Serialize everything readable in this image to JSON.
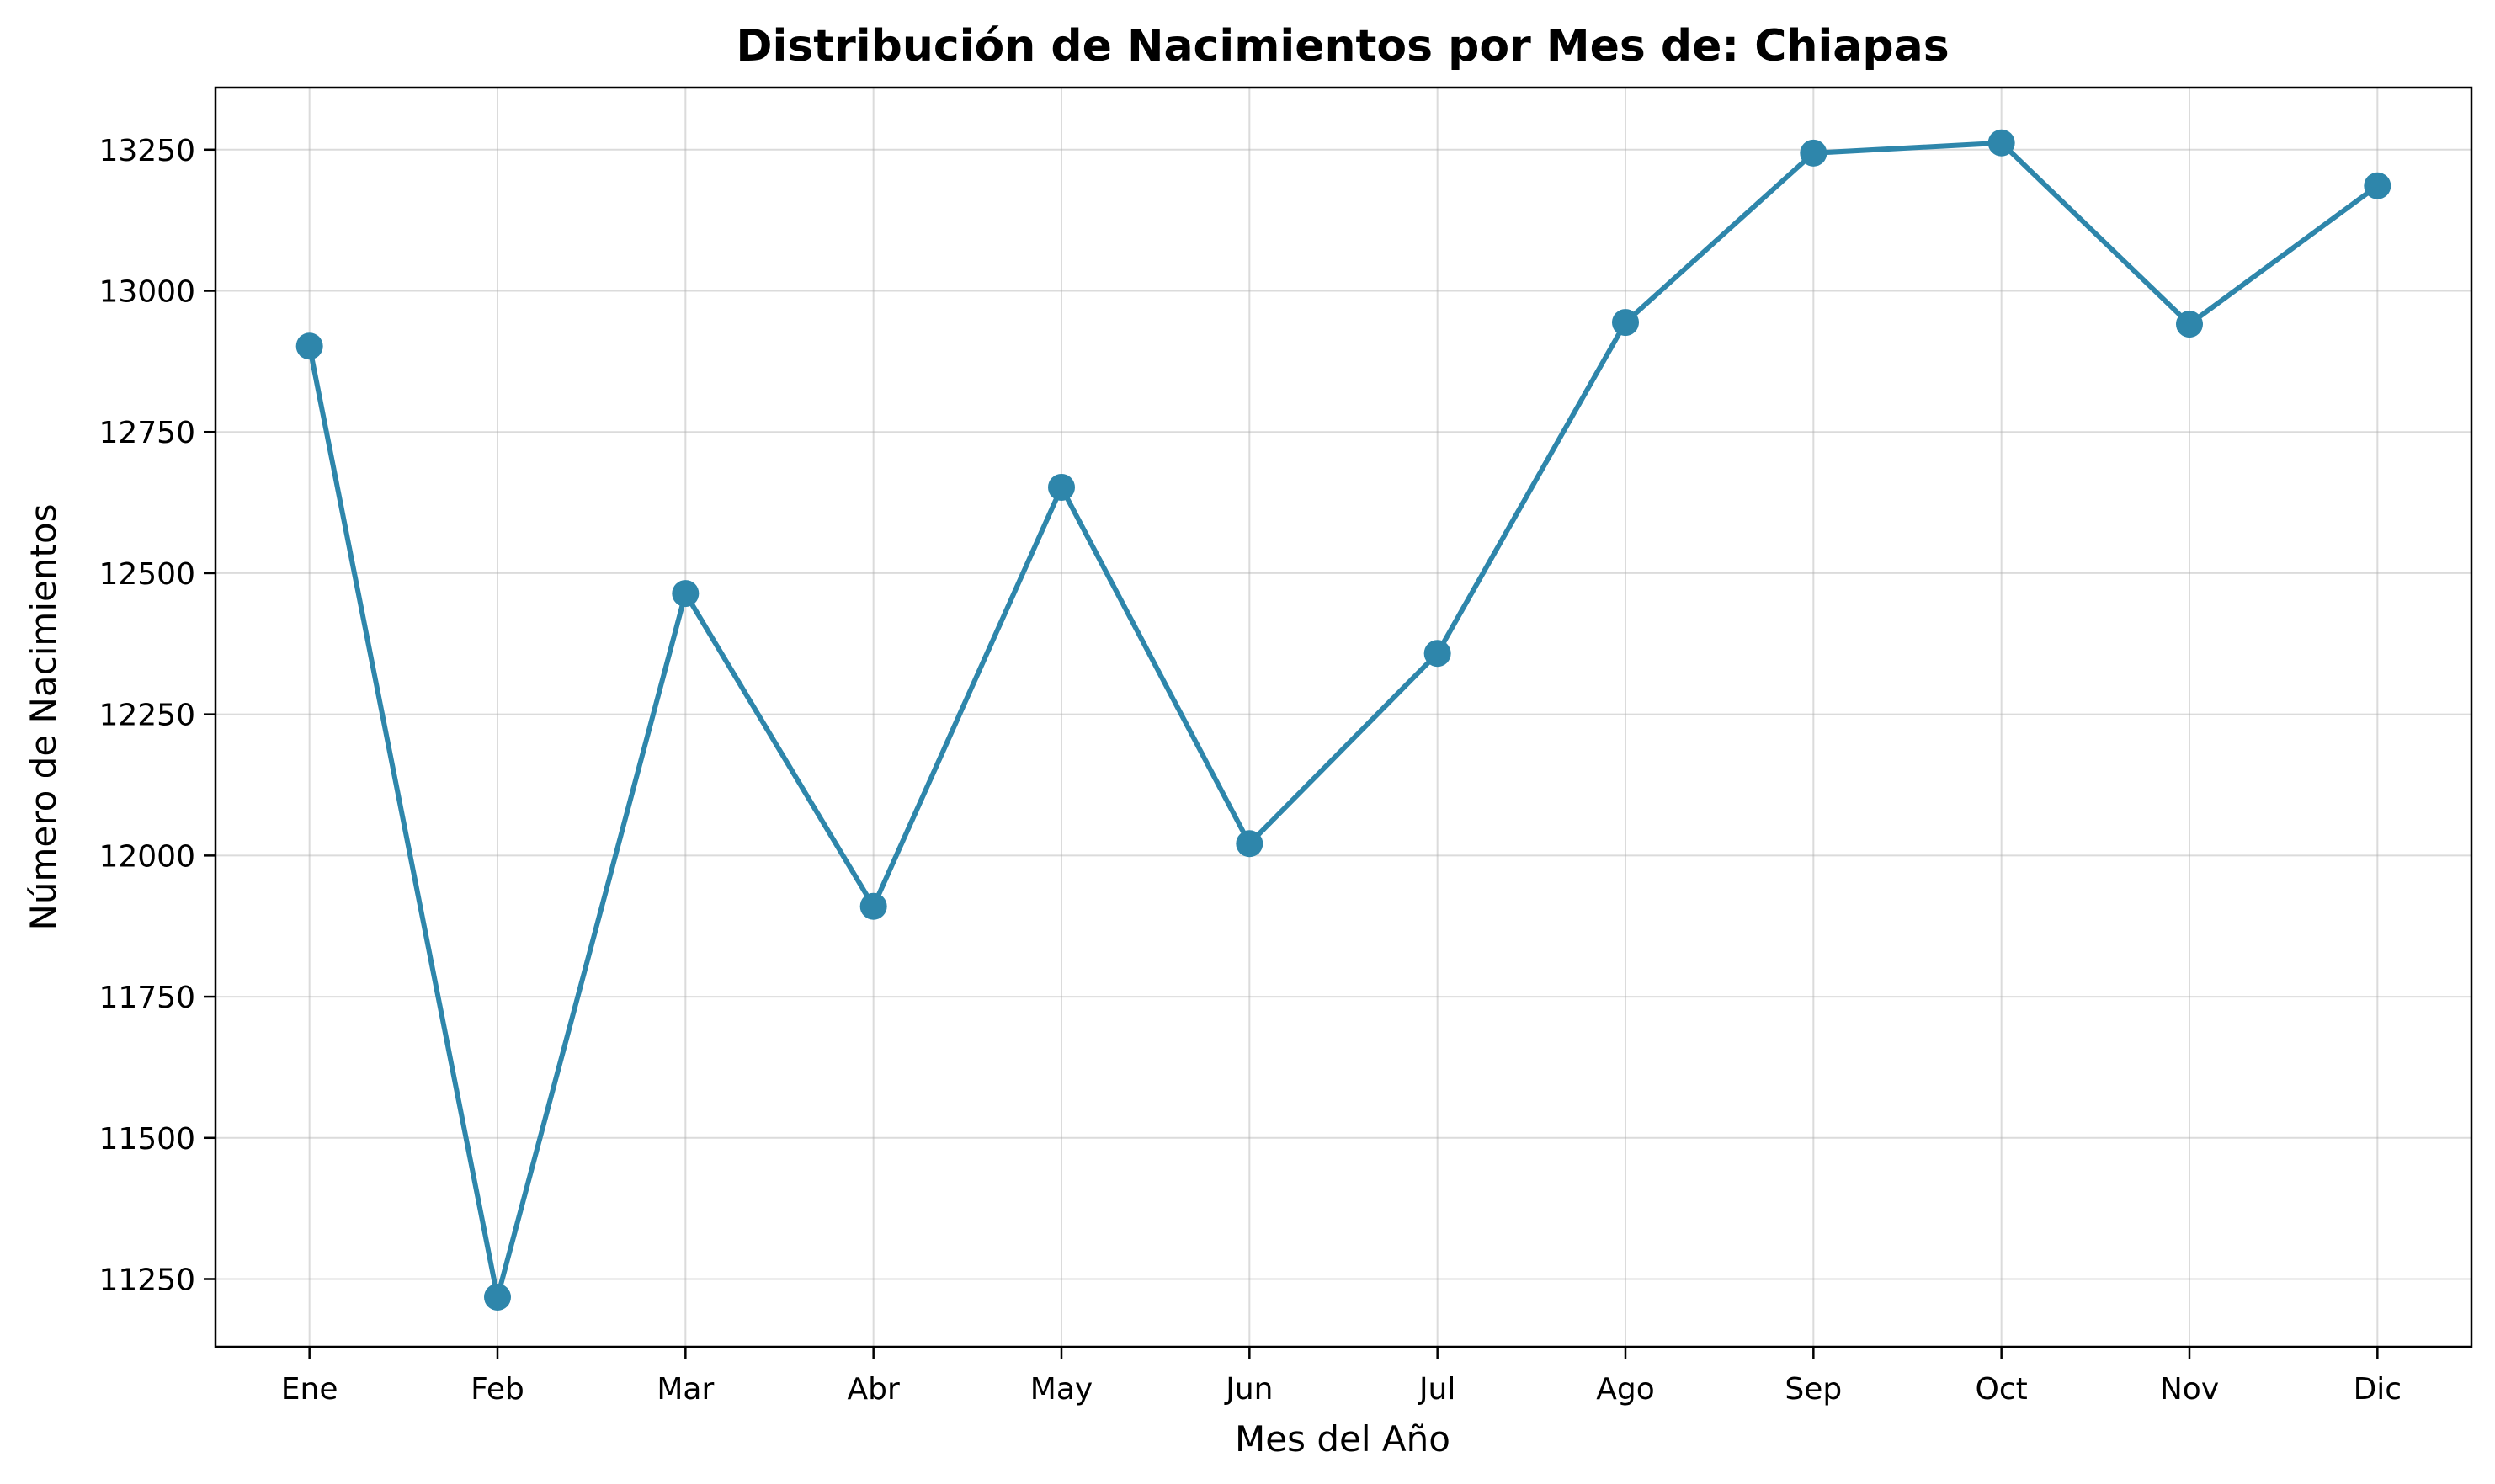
{
  "chart_data": {
    "type": "line",
    "title": "Distribución de Nacimientos por Mes de: Chiapas",
    "xlabel": "Mes del Año",
    "ylabel": "Número de Nacimientos",
    "categories": [
      "Ene",
      "Feb",
      "Mar",
      "Abr",
      "May",
      "Jun",
      "Jul",
      "Ago",
      "Sep",
      "Oct",
      "Nov",
      "Dic"
    ],
    "series": [
      {
        "values": [
          12902,
          11218,
          12464,
          11910,
          12652,
          12021,
          12358,
          12944,
          13244,
          13262,
          12941,
          13186
        ],
        "color": "#2e86ab",
        "marker": "circle"
      }
    ],
    "yticks": [
      11250,
      11500,
      11750,
      12000,
      12250,
      12500,
      12750,
      13000,
      13250
    ],
    "ylim": [
      11130,
      13360
    ],
    "grid": true,
    "legend": "none"
  }
}
